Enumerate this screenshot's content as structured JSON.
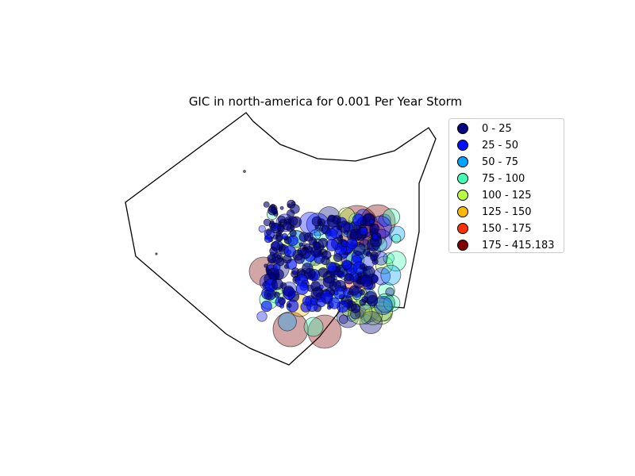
{
  "title": "GIC in north-america for 0.001 Per Year Storm",
  "legend": [
    {
      "label": "0 - 25",
      "color": "#00007f"
    },
    {
      "label": "25 - 50",
      "color": "#0010ff"
    },
    {
      "label": "50 - 75",
      "color": "#00a4ff"
    },
    {
      "label": "75 - 100",
      "color": "#40ffb7"
    },
    {
      "label": "100 - 125",
      "color": "#b7ff40"
    },
    {
      "label": "125 - 150",
      "color": "#ffb900"
    },
    {
      "label": "150 - 175",
      "color": "#ff3000"
    },
    {
      "label": "175 - 415.183",
      "color": "#7f0000"
    }
  ]
}
